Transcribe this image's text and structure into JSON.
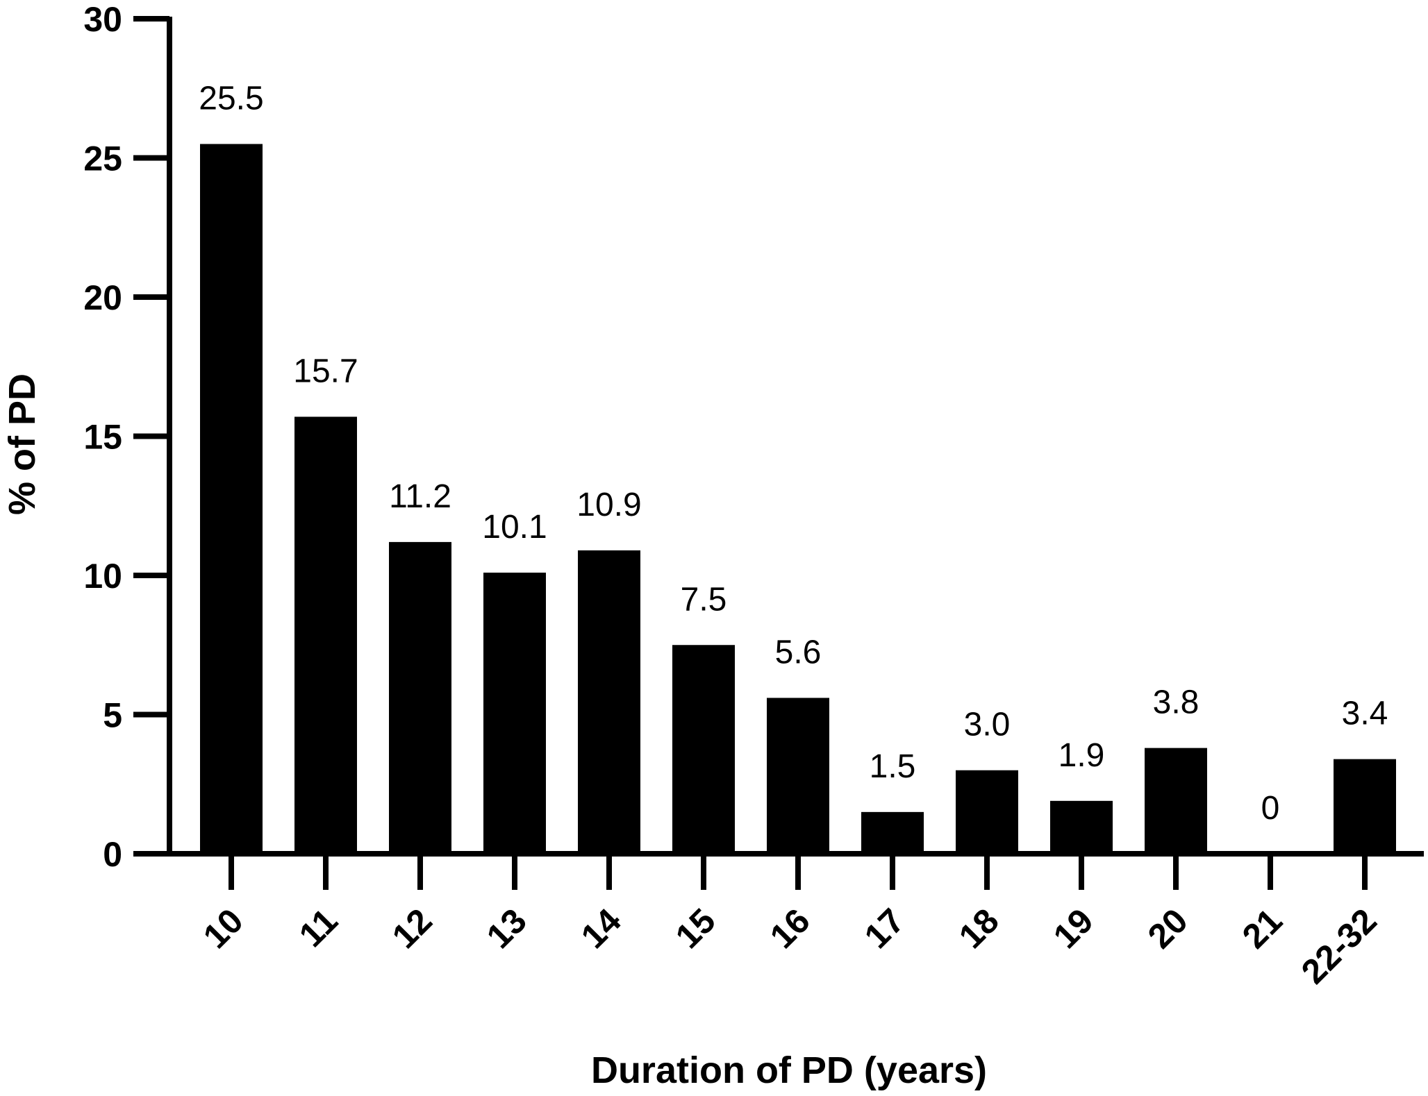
{
  "chart_data": {
    "type": "bar",
    "title": "",
    "xlabel": "Duration of PD (years)",
    "ylabel": "% of PD",
    "categories": [
      "10",
      "11",
      "12",
      "13",
      "14",
      "15",
      "16",
      "17",
      "18",
      "19",
      "20",
      "21",
      "22-32"
    ],
    "values": [
      25.5,
      15.7,
      11.2,
      10.1,
      10.9,
      7.5,
      5.6,
      1.5,
      3.0,
      1.9,
      3.8,
      0,
      3.4
    ],
    "value_labels": [
      "25.5",
      "15.7",
      "11.2",
      "10.1",
      "10.9",
      "7.5",
      "5.6",
      "1.5",
      "3.0",
      "1.9",
      "3.8",
      "0",
      "3.4"
    ],
    "ylim": [
      0,
      30
    ],
    "yticks": [
      0,
      5,
      10,
      15,
      20,
      25,
      30
    ],
    "grid": false,
    "bar_color": "#000000"
  }
}
